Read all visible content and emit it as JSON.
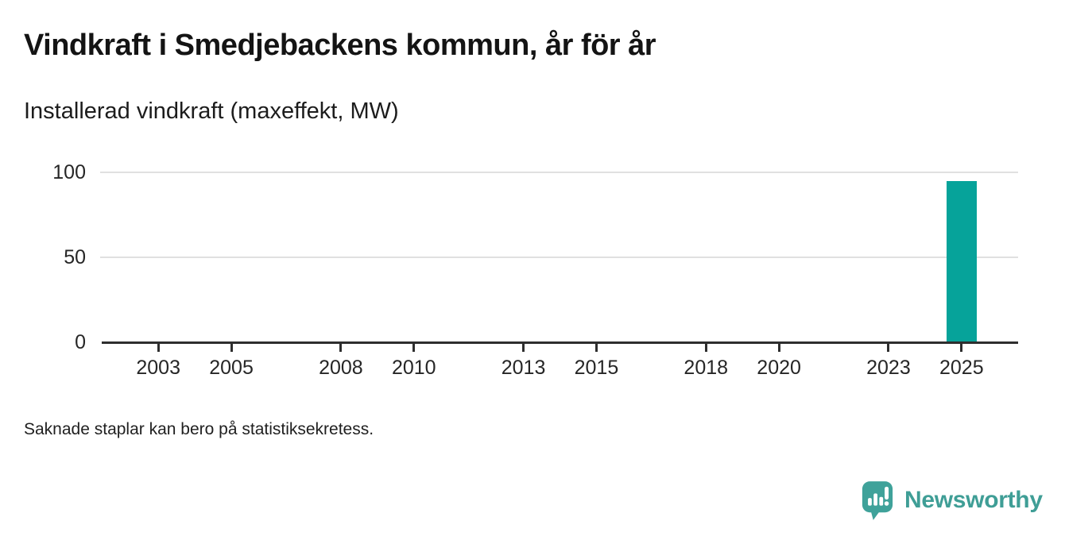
{
  "page": {
    "title": "Vindkraft i Smedjebackens kommun, år för år",
    "subtitle": "Installerad vindkraft (maxeffekt, MW)",
    "note": "Saknade staplar kan bero på statistiksekretess."
  },
  "branding": {
    "name": "Newsworthy",
    "logo_icon": "newsworthy-speech-bubble-bar-chart-icon",
    "icon_color": "#3fa29a",
    "wordmark_color": "#3f9e96"
  },
  "colors": {
    "bar": "#06a39a",
    "axis": "#2e2e2e",
    "gridline": "#e0e0e0",
    "tick_text": "#262626",
    "background": "#ffffff"
  },
  "chart_data": {
    "type": "bar",
    "title": "Vindkraft i Smedjebackens kommun, år för år",
    "subtitle": "Installerad vindkraft (maxeffekt, MW)",
    "xlabel": "",
    "ylabel": "Installerad vindkraft (maxeffekt, MW)",
    "unit": "MW",
    "grid": true,
    "legend": "none",
    "x_domain": [
      2001.45,
      2026.55
    ],
    "x_ticks": [
      2003,
      2005,
      2008,
      2010,
      2013,
      2015,
      2018,
      2020,
      2023,
      2025
    ],
    "y_ticks": [
      0,
      50,
      100
    ],
    "ylim": [
      0,
      100
    ],
    "series": [
      {
        "name": "Installerad vindkraft (maxeffekt, MW)",
        "points": [
          {
            "x": 2025,
            "y": 95
          }
        ]
      }
    ],
    "note": "Saknade staplar kan bero på statistiksekretess."
  }
}
